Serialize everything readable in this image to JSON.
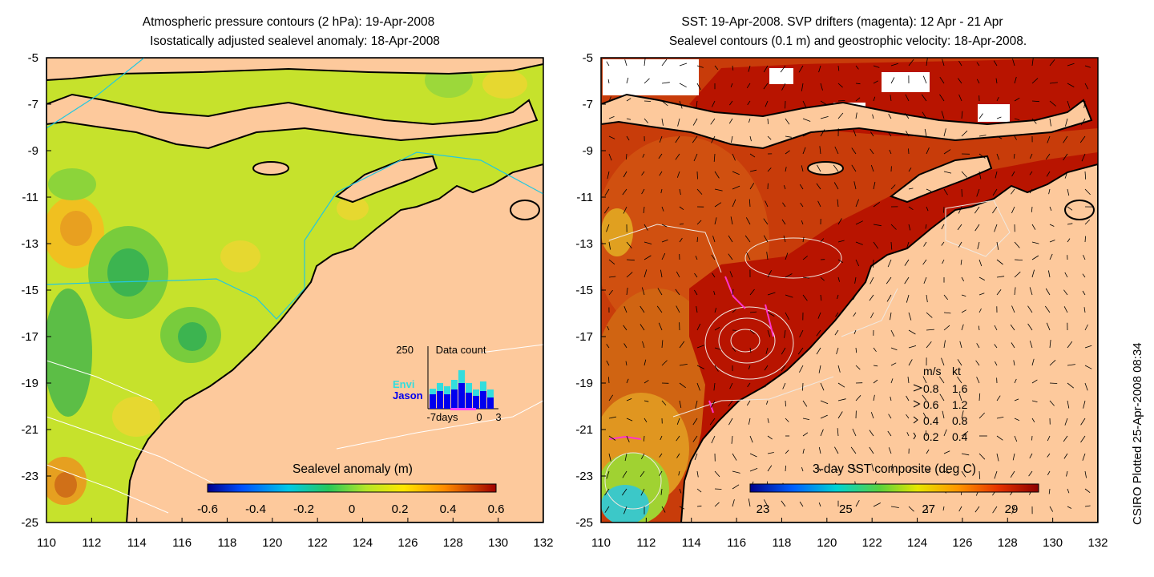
{
  "left_panel": {
    "title_line1": "Atmospheric pressure contours (2 hPa): 19-Apr-2008",
    "title_line2": "Isostatically adjusted sealevel anomaly: 18-Apr-2008",
    "x_ticks": [
      "110",
      "112",
      "114",
      "116",
      "118",
      "120",
      "122",
      "124",
      "126",
      "128",
      "130",
      "132"
    ],
    "y_ticks": [
      "-5",
      "-7",
      "-9",
      "-11",
      "-13",
      "-15",
      "-17",
      "-19",
      "-21",
      "-23",
      "-25"
    ],
    "colorbar_label": "Sealevel anomaly (m)",
    "colorbar_ticks": [
      "-0.6",
      "-0.4",
      "-0.2",
      "0",
      "0.2",
      "0.4",
      "0.6"
    ],
    "inset": {
      "max_label": "250",
      "title": "Data count",
      "series": [
        "Envi",
        "Jason"
      ],
      "series_colors": {
        "Envi": "#33dddd",
        "Jason": "#0000ee"
      },
      "x_labels": [
        "-7days",
        "0",
        "3"
      ]
    }
  },
  "right_panel": {
    "title_line1": "SST: 19-Apr-2008. SVP drifters (magenta): 12 Apr - 21 Apr",
    "title_line2": "Sealevel contours (0.1 m) and geostrophic velocity: 18-Apr-2008.",
    "x_ticks": [
      "110",
      "112",
      "114",
      "116",
      "118",
      "120",
      "122",
      "124",
      "126",
      "128",
      "130",
      "132"
    ],
    "y_ticks": [
      "-5",
      "-7",
      "-9",
      "-11",
      "-13",
      "-15",
      "-17",
      "-19",
      "-21",
      "-23",
      "-25"
    ],
    "colorbar_label": "3-day SST composite (deg C)",
    "colorbar_ticks": [
      "23",
      "25",
      "27",
      "29"
    ],
    "velocity_legend": {
      "header_ms": "m/s",
      "header_kt": "kt",
      "rows": [
        {
          "ms": "0.8",
          "kt": "1.6"
        },
        {
          "ms": "0.6",
          "kt": "1.2"
        },
        {
          "ms": "0.4",
          "kt": "0.8"
        },
        {
          "ms": "0.2",
          "kt": "0.4"
        }
      ]
    }
  },
  "credit": "CSIRO Plotted 25-Apr-2008 08:34",
  "colors": {
    "land": "#fdc99c",
    "sst_dark": "#b81400",
    "sla_base": "#c8e62a"
  }
}
